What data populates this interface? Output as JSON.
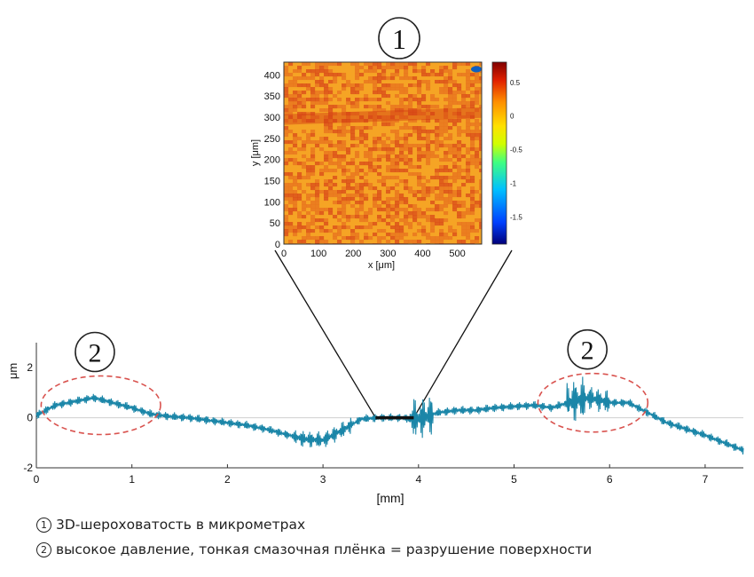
{
  "chart_data": [
    {
      "type": "heatmap",
      "panel_marker": "1",
      "xlabel": "x [μm]",
      "ylabel": "y [μm]",
      "xlim": [
        0,
        570
      ],
      "ylim": [
        0,
        430
      ],
      "x_ticks": [
        0,
        100,
        200,
        300,
        400,
        500
      ],
      "y_ticks": [
        0,
        50,
        100,
        150,
        200,
        250,
        300,
        350,
        400
      ],
      "colorbar": {
        "range": [
          -1.9,
          0.8
        ],
        "ticks": [
          0.5,
          0,
          -0.5,
          -1,
          -1.5
        ],
        "tick_labels": [
          "0.5",
          "0",
          "-0.5",
          "-1",
          "-1.5"
        ],
        "colormap": [
          "#00007a",
          "#0040ff",
          "#00c0ff",
          "#40ff80",
          "#d0ff00",
          "#ffe000",
          "#ff9000",
          "#e02000",
          "#800000"
        ]
      },
      "dominant_colors": [
        "#f5a623",
        "#e8731c",
        "#d94a17"
      ],
      "band_y": [
        290,
        315
      ]
    },
    {
      "type": "line",
      "xlabel": "[mm]",
      "ylabel": "μm",
      "xlim": [
        0,
        7.4
      ],
      "ylim": [
        -2,
        3
      ],
      "x_ticks": [
        0,
        1,
        2,
        3,
        4,
        5,
        6,
        7
      ],
      "y_ticks": [
        -2,
        0,
        2
      ],
      "line_color": "#1b86a8",
      "baseline_y": 0,
      "zoom_segment": [
        3.55,
        3.95
      ],
      "series": [
        {
          "x": [
            0,
            0.2,
            0.4,
            0.6,
            0.8,
            1.0,
            1.2,
            1.4,
            1.6,
            1.8,
            2.0,
            2.2,
            2.4,
            2.6,
            2.8,
            3.0,
            3.2,
            3.4,
            3.6,
            3.8,
            4.0,
            4.2,
            4.4,
            4.6,
            4.8,
            5.0,
            5.2,
            5.4,
            5.6,
            5.8,
            6.0,
            6.2,
            6.4,
            6.6,
            6.8,
            7.0,
            7.2,
            7.4
          ],
          "y": [
            0.1,
            0.5,
            0.65,
            0.8,
            0.6,
            0.4,
            0.15,
            0.05,
            0.0,
            -0.1,
            -0.2,
            -0.3,
            -0.45,
            -0.65,
            -0.85,
            -0.9,
            -0.5,
            -0.05,
            0.0,
            0.0,
            -0.05,
            0.2,
            0.3,
            0.3,
            0.4,
            0.45,
            0.5,
            0.4,
            0.65,
            0.8,
            0.6,
            0.6,
            0.2,
            -0.2,
            -0.45,
            -0.7,
            -1.0,
            -1.3
          ]
        }
      ],
      "annotations": [
        {
          "label": "2",
          "x_range": [
            0.05,
            1.3
          ],
          "y_center": 0.5
        },
        {
          "label": "2",
          "x_range": [
            5.25,
            6.4
          ],
          "y_center": 0.6
        }
      ]
    }
  ],
  "legend": [
    {
      "marker": "1",
      "text": "3D-шероховатость в микрометрах"
    },
    {
      "marker": "2",
      "text": "высокое давление, тонкая смазочная плёнка = разрушение поверхности"
    }
  ]
}
